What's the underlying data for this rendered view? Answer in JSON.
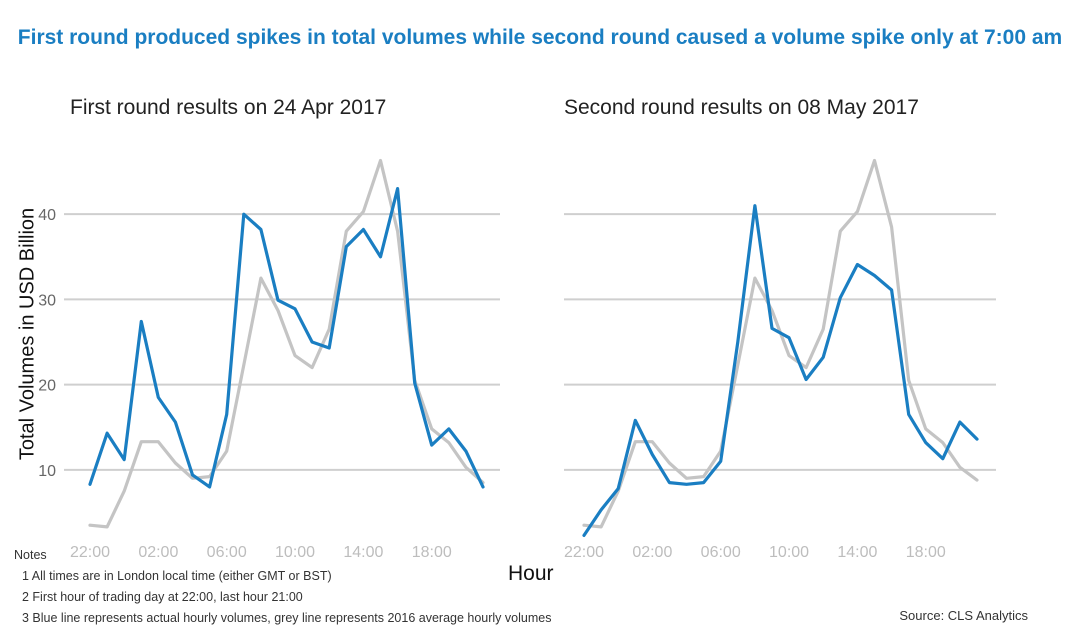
{
  "title": "First round produced spikes in total volumes while second round caused a volume spike only at 7:00 am",
  "xlabel": "Hour",
  "ylabel": "Total Volumes in USD Billion",
  "notes": {
    "heading": "Notes",
    "lines": [
      "1 All times are in London local time (either GMT or BST)",
      "2 First hour of trading day at 22:00, last hour 21:00",
      "3 Blue line represents actual hourly volumes, grey line represents 2016 average hourly volumes"
    ]
  },
  "source": "Source: CLS Analytics",
  "colors": {
    "actual": "#1a7ec2",
    "average": "#c4c4c4",
    "grid": "#cfcfcf",
    "tick": "#bdbdbd"
  },
  "chart_data": [
    {
      "type": "line",
      "title": "First round results on 24 Apr 2017",
      "x": [
        "22:00",
        "23:00",
        "00:00",
        "01:00",
        "02:00",
        "03:00",
        "04:00",
        "05:00",
        "06:00",
        "07:00",
        "08:00",
        "09:00",
        "10:00",
        "11:00",
        "12:00",
        "13:00",
        "14:00",
        "15:00",
        "16:00",
        "17:00",
        "18:00",
        "19:00",
        "20:00",
        "21:00"
      ],
      "xticks": [
        "22:00",
        "02:00",
        "06:00",
        "10:00",
        "14:00",
        "18:00"
      ],
      "yticks": [
        10,
        20,
        30,
        40
      ],
      "ylim": [
        2,
        48
      ],
      "series": [
        {
          "values": [
            8.3,
            14.3,
            11.2,
            27.4,
            18.5,
            15.6,
            9.4,
            8.0,
            16.5,
            40.0,
            38.2,
            29.9,
            28.9,
            25.0,
            24.3,
            36.2,
            38.2,
            35.0,
            43.0,
            20.2,
            12.9,
            14.8,
            12.2,
            8.0
          ]
        },
        {
          "values": [
            3.5,
            3.3,
            7.5,
            13.3,
            13.3,
            10.8,
            9.0,
            9.2,
            12.2,
            22.3,
            32.5,
            28.7,
            23.4,
            22.0,
            26.5,
            38.0,
            40.3,
            46.3,
            38.0,
            20.5,
            14.8,
            13.2,
            10.3,
            8.5
          ]
        }
      ]
    },
    {
      "type": "line",
      "title": "Second round results on 08 May 2017",
      "x": [
        "22:00",
        "23:00",
        "00:00",
        "01:00",
        "02:00",
        "03:00",
        "04:00",
        "05:00",
        "06:00",
        "07:00",
        "08:00",
        "09:00",
        "10:00",
        "11:00",
        "12:00",
        "13:00",
        "14:00",
        "15:00",
        "16:00",
        "17:00",
        "18:00",
        "19:00",
        "20:00",
        "21:00"
      ],
      "xticks": [
        "22:00",
        "02:00",
        "06:00",
        "10:00",
        "14:00",
        "18:00"
      ],
      "yticks": [
        10,
        20,
        30,
        40
      ],
      "ylim": [
        2,
        48
      ],
      "series": [
        {
          "values": [
            2.3,
            5.3,
            7.8,
            15.8,
            11.8,
            8.5,
            8.3,
            8.5,
            11.0,
            25.0,
            41.0,
            26.6,
            25.5,
            20.6,
            23.2,
            30.2,
            34.1,
            32.8,
            31.1,
            16.5,
            13.2,
            11.3,
            15.6,
            13.6
          ]
        },
        {
          "values": [
            3.5,
            3.3,
            7.5,
            13.3,
            13.3,
            10.8,
            9.0,
            9.2,
            12.2,
            22.3,
            32.5,
            28.7,
            23.4,
            22.0,
            26.5,
            38.0,
            40.3,
            46.3,
            38.5,
            20.5,
            14.8,
            13.2,
            10.3,
            8.8
          ]
        }
      ]
    }
  ]
}
